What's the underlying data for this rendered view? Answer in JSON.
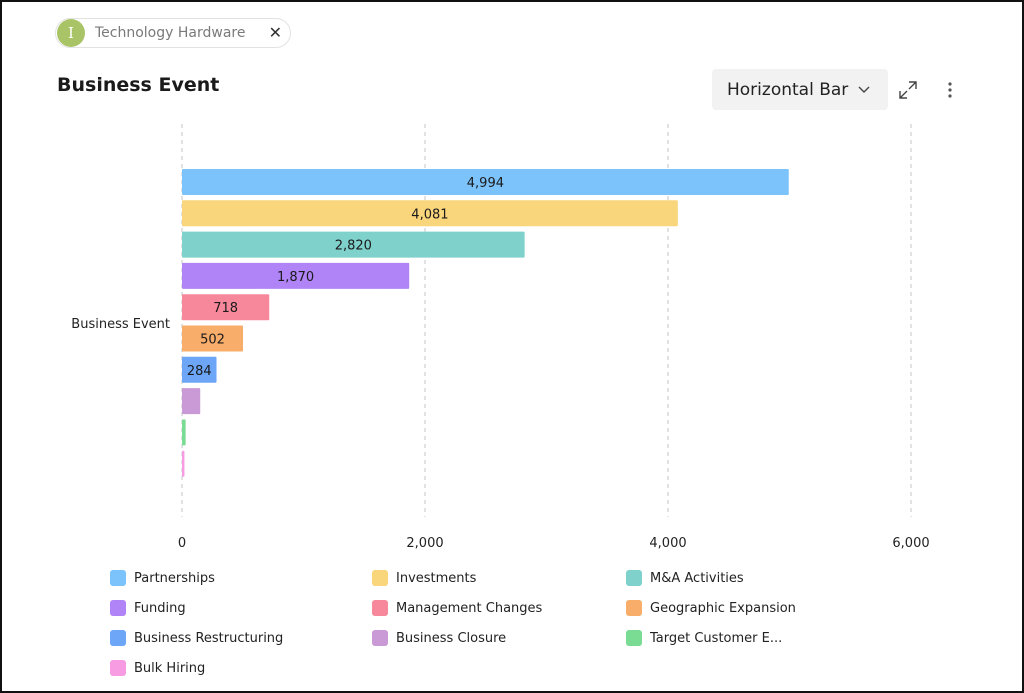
{
  "filter_chip": {
    "avatar_letter": "I",
    "label": "Technology Hardware",
    "close_glyph": "✕"
  },
  "widget": {
    "title": "Business Event",
    "chart_type_select": "Horizontal Bar",
    "icons": [
      "expand-icon",
      "more-vertical-icon"
    ]
  },
  "chart_data": {
    "type": "bar",
    "orientation": "horizontal",
    "categories": [
      "Business Event"
    ],
    "xlim": [
      0,
      6000
    ],
    "x_ticks": [
      "0",
      "2,000",
      "4,000",
      "6,000"
    ],
    "grid": "vertical dashed",
    "legend_position": "bottom",
    "series": [
      {
        "name": "Partnerships",
        "value": 4994,
        "label": "4,994",
        "color": "#7cc2fb"
      },
      {
        "name": "Investments",
        "value": 4081,
        "label": "4,081",
        "color": "#f9d57c"
      },
      {
        "name": "M&A Activities",
        "value": 2820,
        "label": "2,820",
        "color": "#7fd1cc"
      },
      {
        "name": "Funding",
        "value": 1870,
        "label": "1,870",
        "color": "#b084f7"
      },
      {
        "name": "Management Changes",
        "value": 718,
        "label": "718",
        "color": "#f7879a"
      },
      {
        "name": "Geographic Expansion",
        "value": 502,
        "label": "502",
        "color": "#f8ad6a"
      },
      {
        "name": "Business Restructuring",
        "value": 284,
        "label": "284",
        "color": "#6da6f7"
      },
      {
        "name": "Business Closure",
        "value": 150,
        "label": "",
        "color": "#c99ad6"
      },
      {
        "name": "Target Customer E...",
        "value": 30,
        "label": "",
        "color": "#7adb93"
      },
      {
        "name": "Bulk Hiring",
        "value": 20,
        "label": "",
        "color": "#f79be3"
      }
    ]
  }
}
